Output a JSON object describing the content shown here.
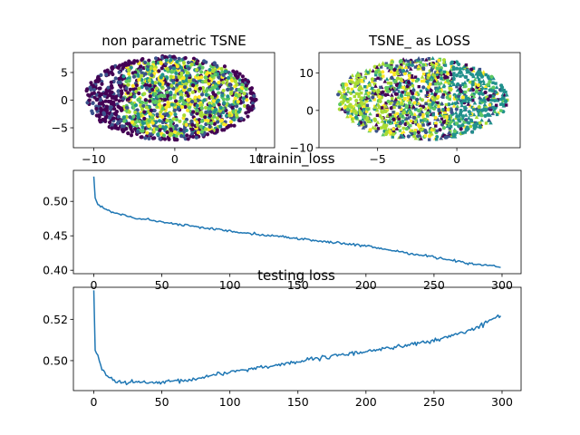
{
  "chart_data": [
    {
      "type": "scatter",
      "title": "non parametric TSNE",
      "xlim": [
        -12.5,
        12.3
      ],
      "ylim": [
        -8.6,
        8.6
      ],
      "xticks": [
        -10,
        0,
        10
      ],
      "xtick_labels": [
        "−10",
        "0",
        "10"
      ],
      "yticks": [
        -5,
        0,
        5
      ],
      "ytick_labels": [
        "−5",
        "0",
        "5"
      ],
      "point_shape": "ellipse cloud",
      "cloud": {
        "center": [
          -0.5,
          0.4
        ],
        "radii": [
          10.6,
          7.6
        ]
      },
      "colors": [
        "#440154",
        "#3b528b",
        "#21918c",
        "#5ec962",
        "#fde725",
        "#a8db34"
      ]
    },
    {
      "type": "scatter",
      "title": "TSNE_ as LOSS",
      "xlim": [
        -8.7,
        4.0
      ],
      "ylim": [
        -10,
        15.5
      ],
      "xticks": [
        -5,
        0
      ],
      "xtick_labels": [
        "−5",
        "0"
      ],
      "yticks": [
        -10,
        0,
        10
      ],
      "ytick_labels": [
        "−10",
        "0",
        "10"
      ],
      "point_shape": "mixed markers",
      "cloud": {
        "center": [
          -2.2,
          3.0
        ],
        "radii": [
          5.4,
          11.0
        ]
      },
      "colors": [
        "#440154",
        "#3b528b",
        "#21918c",
        "#5ec962",
        "#fde725",
        "#a8db34"
      ]
    },
    {
      "type": "line",
      "title": "trainin_loss",
      "xlim": [
        -15,
        314
      ],
      "ylim": [
        0.395,
        0.545
      ],
      "xticks": [
        0,
        50,
        100,
        150,
        200,
        250,
        300
      ],
      "xtick_labels": [
        "0",
        "50",
        "100",
        "150",
        "200",
        "250",
        "300"
      ],
      "yticks": [
        0.4,
        0.45,
        0.5
      ],
      "ytick_labels": [
        "0.40",
        "0.45",
        "0.50"
      ],
      "color": "#1f77b4",
      "keypoints": [
        [
          0,
          0.536
        ],
        [
          1,
          0.505
        ],
        [
          3,
          0.495
        ],
        [
          8,
          0.489
        ],
        [
          15,
          0.483
        ],
        [
          30,
          0.476
        ],
        [
          60,
          0.467
        ],
        [
          100,
          0.457
        ],
        [
          150,
          0.446
        ],
        [
          200,
          0.435
        ],
        [
          250,
          0.419
        ],
        [
          280,
          0.409
        ],
        [
          299,
          0.405
        ]
      ],
      "noise": 0.0012,
      "n": 300
    },
    {
      "type": "line",
      "title": "testing loss",
      "xlim": [
        -15,
        314
      ],
      "ylim": [
        0.4855,
        0.5355
      ],
      "xticks": [
        0,
        50,
        100,
        150,
        200,
        250,
        300
      ],
      "xtick_labels": [
        "0",
        "50",
        "100",
        "150",
        "200",
        "250",
        "300"
      ],
      "yticks": [
        0.5,
        0.52
      ],
      "ytick_labels": [
        "0.50",
        "0.52"
      ],
      "color": "#1f77b4",
      "keypoints": [
        [
          0,
          0.534
        ],
        [
          1,
          0.505
        ],
        [
          3,
          0.502
        ],
        [
          6,
          0.496
        ],
        [
          10,
          0.492
        ],
        [
          15,
          0.4905
        ],
        [
          20,
          0.4895
        ],
        [
          50,
          0.4892
        ],
        [
          75,
          0.491
        ],
        [
          90,
          0.4935
        ],
        [
          120,
          0.4965
        ],
        [
          150,
          0.4995
        ],
        [
          200,
          0.5045
        ],
        [
          250,
          0.5095
        ],
        [
          280,
          0.5155
        ],
        [
          299,
          0.522
        ]
      ],
      "noise": 0.0007,
      "n": 300
    }
  ]
}
